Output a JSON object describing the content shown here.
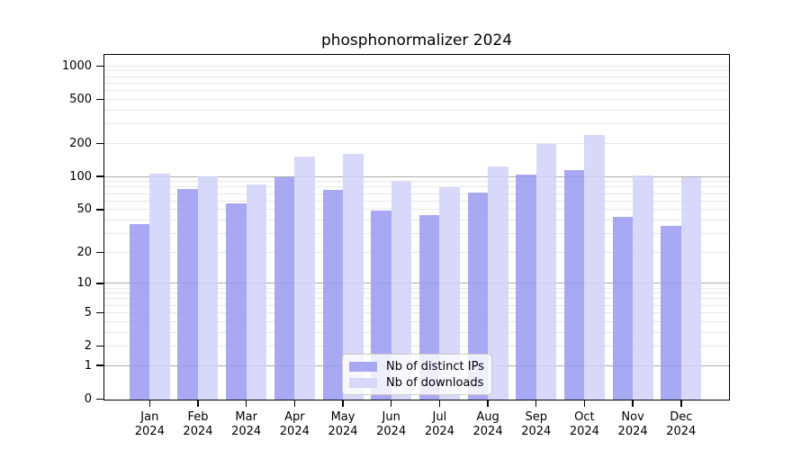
{
  "title": "phosphonormalizer 2024",
  "legend": {
    "items": [
      {
        "label": "Nb of distinct IPs",
        "color": "#a9a9f3"
      },
      {
        "label": "Nb of downloads",
        "color": "#d8d8f9"
      }
    ]
  },
  "axes": {
    "y_tick_labels": [
      "1000",
      "500",
      "200",
      "100",
      "50",
      "20",
      "10",
      "5",
      "2",
      "1",
      "0"
    ],
    "x_months": [
      "Jan",
      "Feb",
      "Mar",
      "Apr",
      "May",
      "Jun",
      "Jul",
      "Aug",
      "Sep",
      "Oct",
      "Nov",
      "Dec"
    ],
    "x_year": "2024"
  },
  "chart_data": {
    "type": "bar",
    "title": "phosphonormalizer 2024",
    "categories": [
      "Jan 2024",
      "Feb 2024",
      "Mar 2024",
      "Apr 2024",
      "May 2024",
      "Jun 2024",
      "Jul 2024",
      "Aug 2024",
      "Sep 2024",
      "Oct 2024",
      "Nov 2024",
      "Dec 2024"
    ],
    "series": [
      {
        "name": "Nb of distinct IPs",
        "color": "#a9a9f3",
        "values": [
          37,
          77,
          57,
          99,
          76,
          49,
          44,
          72,
          105,
          114,
          43,
          35
        ]
      },
      {
        "name": "Nb of downloads",
        "color": "#d8d8f9",
        "values": [
          107,
          100,
          85,
          152,
          161,
          92,
          80,
          123,
          197,
          238,
          103,
          99
        ]
      }
    ],
    "yscale": "log1p",
    "yticks": [
      0,
      1,
      2,
      5,
      10,
      20,
      50,
      100,
      200,
      500,
      1000
    ],
    "ylim": [
      0,
      1100
    ],
    "grid": true,
    "legend_position": "lower center"
  }
}
